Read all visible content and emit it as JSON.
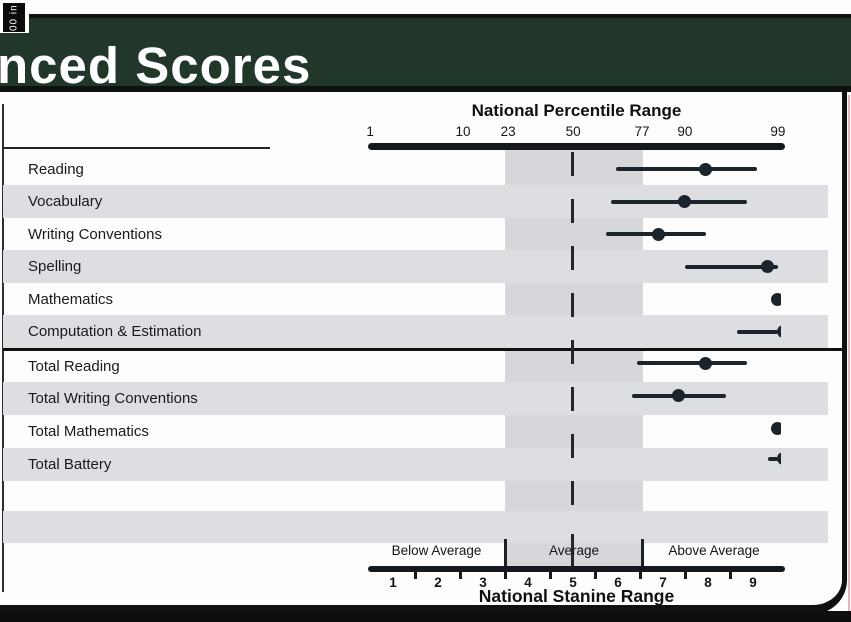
{
  "page": {
    "corner_tab": "00 in",
    "title": "nced Scores"
  },
  "colors": {
    "banner_green": "#20372a",
    "bar_dot_ink": "#1b242b",
    "shade_gray": "#dcdee1",
    "average_band_gray": "#b8bcc2",
    "frame_black": "#101010"
  },
  "chart_data": {
    "type": "scatter",
    "title": "nced Scores",
    "description": "Score dots with confidence-interval bars on a non-linear national percentile scale",
    "percentile_axis": {
      "title": "National Percentile Range",
      "ticks": [
        {
          "label": "1",
          "value": 1,
          "pos_pct": 0.5
        },
        {
          "label": "10",
          "value": 10,
          "pos_pct": 22.8
        },
        {
          "label": "23",
          "value": 23,
          "pos_pct": 33.6
        },
        {
          "label": "50",
          "value": 50,
          "pos_pct": 49.2
        },
        {
          "label": "77",
          "value": 77,
          "pos_pct": 65.7
        },
        {
          "label": "90",
          "value": 90,
          "pos_pct": 76.0
        },
        {
          "label": "99",
          "value": 99,
          "pos_pct": 98.3
        }
      ]
    },
    "stanine_axis": {
      "title": "National Stanine Range",
      "values": [
        "1",
        "2",
        "3",
        "4",
        "5",
        "6",
        "7",
        "8",
        "9"
      ],
      "zones": [
        {
          "label": "Below Average"
        },
        {
          "label": "Average"
        },
        {
          "label": "Above Average"
        }
      ]
    },
    "rows": [
      {
        "label": "Reading",
        "shaded": false,
        "percentile": 92,
        "ci_low": 67,
        "ci_high": 97,
        "clipped": null
      },
      {
        "label": "Vocabulary",
        "shaded": true,
        "percentile": 90,
        "ci_low": 65,
        "ci_high": 96,
        "clipped": null
      },
      {
        "label": "Writing Conventions",
        "shaded": false,
        "percentile": 82,
        "ci_low": 63,
        "ci_high": 92,
        "clipped": null
      },
      {
        "label": "Spelling",
        "shaded": true,
        "percentile": 98,
        "ci_low": 90,
        "ci_high": 99,
        "clipped": null
      },
      {
        "label": "Mathematics",
        "shaded": false,
        "percentile": 99,
        "ci_low": null,
        "ci_high": null,
        "clipped": "half"
      },
      {
        "label": "Computation & Estimation",
        "shaded": true,
        "percentile": 99,
        "ci_low": 95,
        "ci_high": 99,
        "clipped": "sliver"
      },
      {
        "label": "Total Reading",
        "shaded": false,
        "percentile": 92,
        "ci_low": 75,
        "ci_high": 96,
        "clipped": null
      },
      {
        "label": "Total Writing Conventions",
        "shaded": true,
        "percentile": 88,
        "ci_low": 73,
        "ci_high": 94,
        "clipped": null
      },
      {
        "label": "Total Mathematics",
        "shaded": false,
        "percentile": 99,
        "ci_low": null,
        "ci_high": null,
        "clipped": "half"
      },
      {
        "label": "Total Battery",
        "shaded": true,
        "percentile": 99,
        "ci_low": 98,
        "ci_high": 99,
        "clipped": "sliver"
      }
    ]
  }
}
